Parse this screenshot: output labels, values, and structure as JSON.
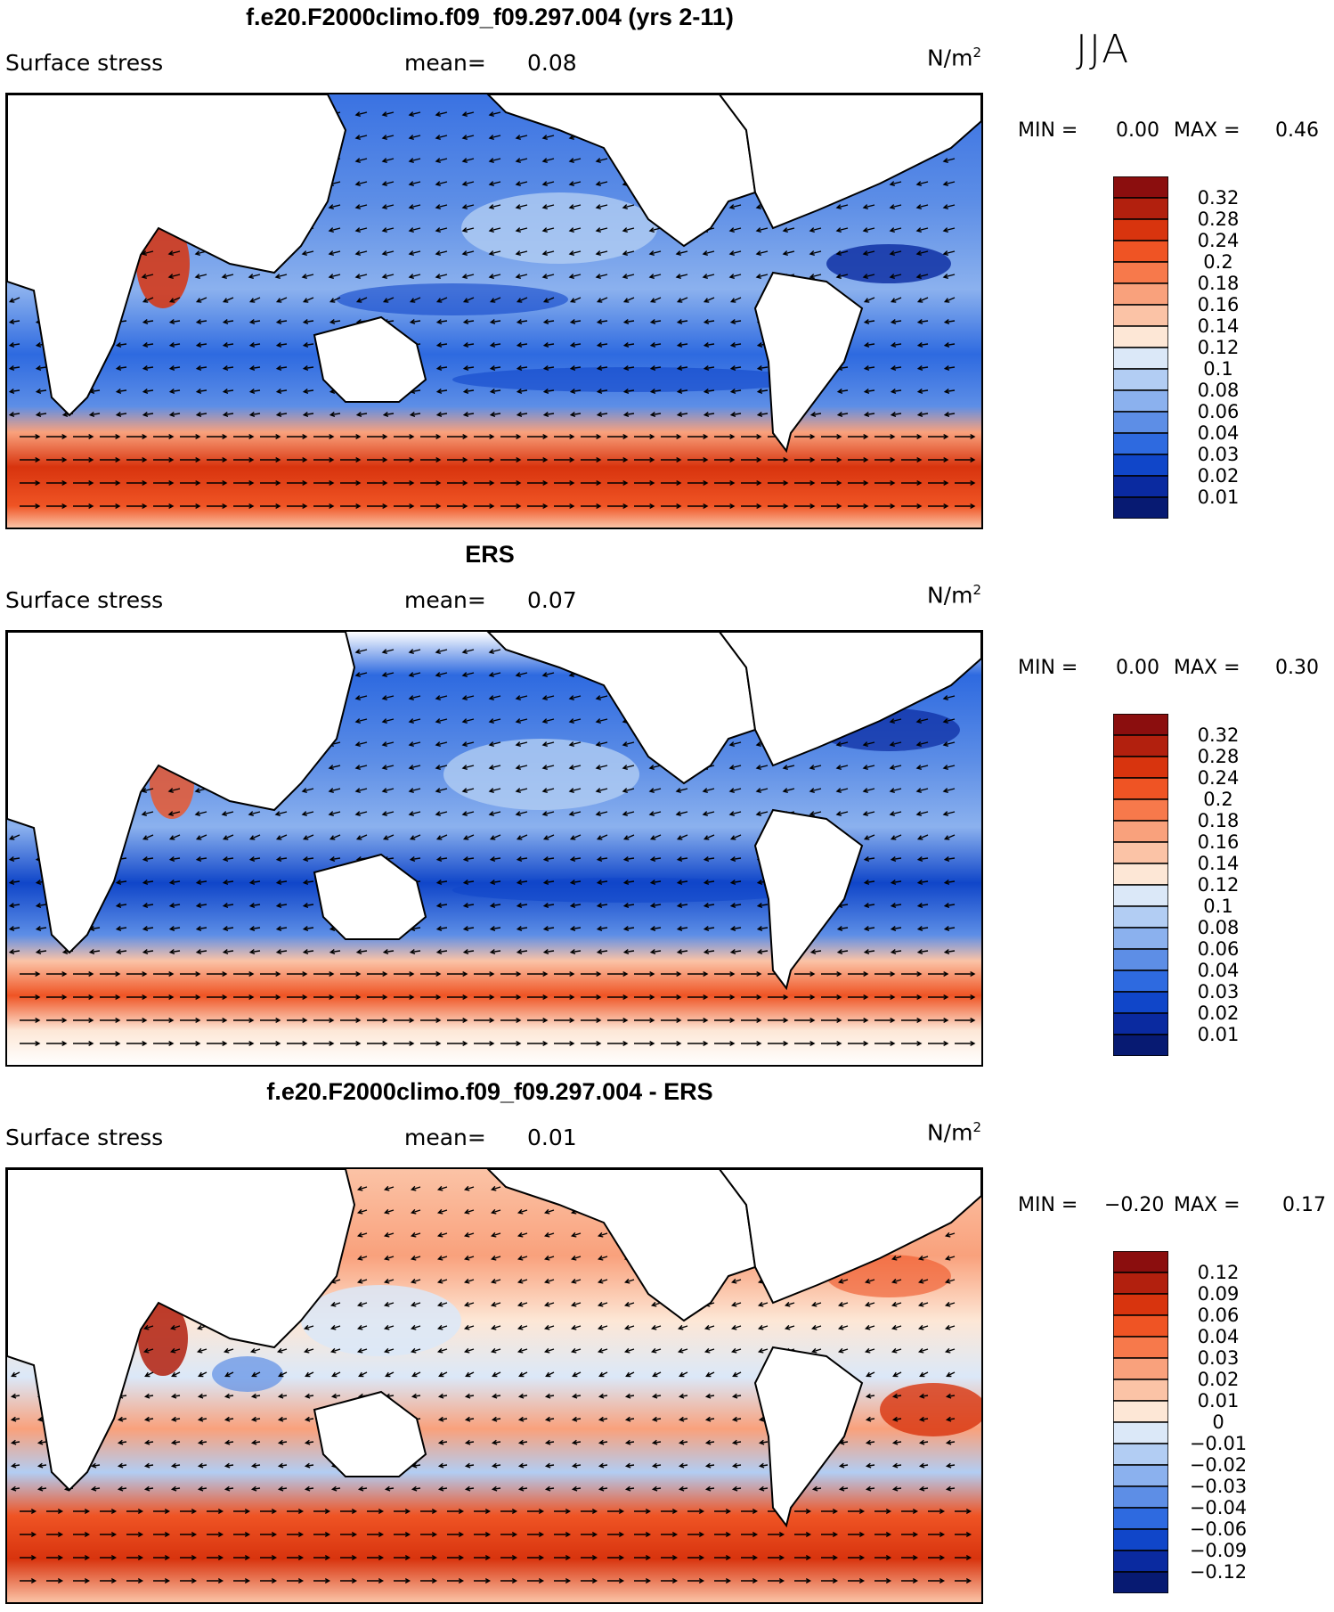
{
  "season": "JJA",
  "panels": [
    {
      "title": "f.e20.F2000climo.f09_f09.297.004 (yrs 2-11)",
      "variable": "Surface stress",
      "mean_label": "mean=",
      "mean_value": "0.08",
      "units": "N/m",
      "units_sup": "2",
      "min_label": "MIN =",
      "min_value": "0.00",
      "max_label": "MAX =",
      "max_value": "0.46"
    },
    {
      "title": "ERS",
      "variable": "Surface stress",
      "mean_label": "mean=",
      "mean_value": "0.07",
      "units": "N/m",
      "units_sup": "2",
      "min_label": "MIN =",
      "min_value": "0.00",
      "max_label": "MAX =",
      "max_value": "0.30"
    },
    {
      "title": "f.e20.F2000climo.f09_f09.297.004 - ERS",
      "variable": "Surface stress",
      "mean_label": "mean=",
      "mean_value": "0.01",
      "units": "N/m",
      "units_sup": "2",
      "min_label": "MIN =",
      "min_value": "−0.20",
      "max_label": "MAX =",
      "max_value": "0.17"
    }
  ],
  "colorbars": {
    "abs_levels": [
      "0.32",
      "0.28",
      "0.24",
      "0.2",
      "0.18",
      "0.16",
      "0.14",
      "0.12",
      "0.1",
      "0.08",
      "0.06",
      "0.04",
      "0.03",
      "0.02",
      "0.01"
    ],
    "diff_levels": [
      "0.12",
      "0.09",
      "0.06",
      "0.04",
      "0.03",
      "0.02",
      "0.01",
      "0",
      "−0.01",
      "−0.02",
      "−0.03",
      "−0.04",
      "−0.06",
      "−0.09",
      "−0.12"
    ],
    "colors": [
      "#8b0e0e",
      "#b2200e",
      "#d8340e",
      "#ef5424",
      "#f7794b",
      "#f9a17c",
      "#fbc3a6",
      "#fde7d6",
      "#dbe8f8",
      "#b2cdf3",
      "#8bb1ee",
      "#5d8ee6",
      "#2e6ae0",
      "#1046c9",
      "#0a2aa0",
      "#071a72"
    ]
  },
  "chart_data": [
    {
      "type": "heatmap",
      "title": "f.e20.F2000climo.f09_f09.297.004 (yrs 2-11)",
      "subtitle": "Surface stress",
      "units": "N/m2",
      "mean": 0.08,
      "min": 0.0,
      "max": 0.46,
      "levels": [
        0.01,
        0.02,
        0.03,
        0.04,
        0.06,
        0.08,
        0.1,
        0.12,
        0.14,
        0.16,
        0.18,
        0.2,
        0.24,
        0.28,
        0.32
      ],
      "season": "JJA"
    },
    {
      "type": "heatmap",
      "title": "ERS",
      "subtitle": "Surface stress",
      "units": "N/m2",
      "mean": 0.07,
      "min": 0.0,
      "max": 0.3,
      "levels": [
        0.01,
        0.02,
        0.03,
        0.04,
        0.06,
        0.08,
        0.1,
        0.12,
        0.14,
        0.16,
        0.18,
        0.2,
        0.24,
        0.28,
        0.32
      ],
      "season": "JJA"
    },
    {
      "type": "heatmap",
      "title": "f.e20.F2000climo.f09_f09.297.004 - ERS",
      "subtitle": "Surface stress",
      "units": "N/m2",
      "mean": 0.01,
      "min": -0.2,
      "max": 0.17,
      "levels": [
        -0.12,
        -0.09,
        -0.06,
        -0.04,
        -0.03,
        -0.02,
        -0.01,
        0,
        0.01,
        0.02,
        0.03,
        0.04,
        0.06,
        0.09,
        0.12
      ],
      "season": "JJA"
    }
  ]
}
